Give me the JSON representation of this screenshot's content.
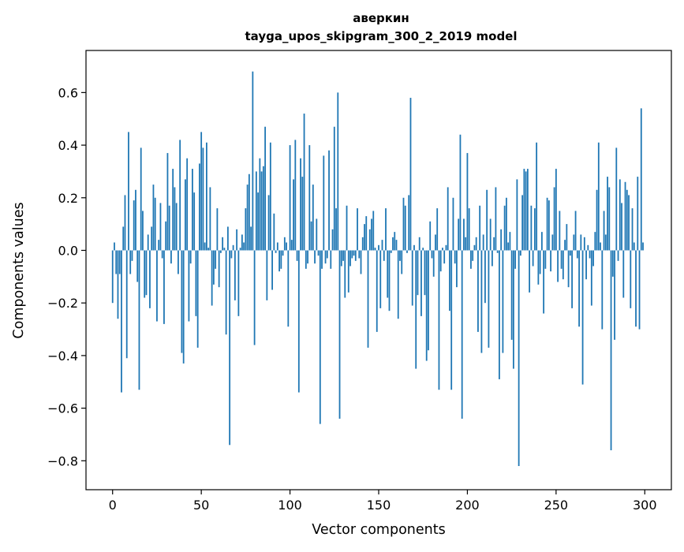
{
  "chart_data": {
    "type": "bar",
    "title_line1": "аверкин",
    "title_line2": "tayga_upos_skipgram_300_2_2019 model",
    "xlabel": "Vector components",
    "ylabel": "Components values",
    "xlim": [
      -15,
      315
    ],
    "ylim": [
      -0.91,
      0.76
    ],
    "x_ticks": [
      0,
      50,
      100,
      150,
      200,
      250,
      300
    ],
    "x_tick_labels": [
      "0",
      "50",
      "100",
      "150",
      "200",
      "250",
      "300"
    ],
    "y_ticks": [
      0.6,
      0.4,
      0.2,
      0.0,
      -0.2,
      -0.4,
      -0.6,
      -0.8
    ],
    "y_tick_labels": [
      "0.6",
      "0.4",
      "0.2",
      "0.0",
      "−0.2",
      "−0.4",
      "−0.6",
      "−0.8"
    ],
    "grid": false,
    "bar_color": "#1f77b4",
    "values": [
      -0.2,
      0.03,
      -0.09,
      -0.26,
      -0.09,
      -0.54,
      0.09,
      0.21,
      -0.41,
      0.45,
      -0.09,
      -0.04,
      0.19,
      0.23,
      -0.12,
      -0.53,
      0.39,
      0.15,
      -0.18,
      -0.17,
      0.06,
      -0.22,
      0.09,
      0.25,
      0.2,
      -0.27,
      0.04,
      0.18,
      -0.03,
      -0.28,
      0.11,
      0.37,
      0.17,
      -0.05,
      0.31,
      0.24,
      0.18,
      -0.09,
      0.42,
      -0.39,
      -0.43,
      0.27,
      0.35,
      -0.27,
      -0.05,
      0.31,
      0.22,
      -0.25,
      -0.37,
      0.33,
      0.45,
      0.39,
      0.03,
      0.41,
      0.01,
      0.24,
      -0.21,
      -0.13,
      -0.07,
      0.16,
      -0.14,
      -0.01,
      0.05,
      0.01,
      -0.32,
      0.09,
      -0.74,
      -0.03,
      0.02,
      -0.19,
      0.08,
      -0.25,
      0.01,
      0.06,
      0.03,
      0.16,
      0.25,
      0.29,
      0.09,
      0.68,
      -0.36,
      0.3,
      0.22,
      0.35,
      0.3,
      0.32,
      0.47,
      -0.19,
      0.21,
      0.41,
      -0.15,
      0.14,
      -0.01,
      0.03,
      -0.08,
      -0.07,
      -0.02,
      0.05,
      0.03,
      -0.29,
      0.4,
      0.04,
      0.27,
      0.42,
      -0.04,
      -0.54,
      0.35,
      0.28,
      0.52,
      -0.07,
      -0.05,
      0.4,
      0.11,
      0.25,
      -0.05,
      0.12,
      -0.02,
      -0.66,
      -0.07,
      0.36,
      -0.05,
      -0.03,
      0.38,
      -0.07,
      0.08,
      0.47,
      0.16,
      0.6,
      -0.64,
      -0.06,
      -0.04,
      -0.18,
      0.17,
      -0.16,
      -0.06,
      -0.03,
      -0.02,
      -0.04,
      0.16,
      -0.03,
      -0.09,
      0.05,
      0.1,
      0.13,
      -0.37,
      0.08,
      0.12,
      0.15,
      0.01,
      -0.31,
      0.02,
      -0.22,
      0.04,
      -0.04,
      0.16,
      -0.18,
      -0.23,
      -0.01,
      0.05,
      0.07,
      0.04,
      -0.26,
      -0.04,
      -0.09,
      0.2,
      0.17,
      -0.01,
      0.21,
      0.58,
      -0.21,
      0.02,
      -0.45,
      -0.17,
      0.05,
      -0.25,
      0.01,
      -0.17,
      -0.42,
      -0.38,
      0.11,
      -0.03,
      -0.1,
      0.06,
      0.16,
      -0.53,
      -0.08,
      0.01,
      -0.05,
      0.02,
      0.24,
      -0.23,
      -0.53,
      0.2,
      -0.05,
      -0.14,
      0.12,
      0.44,
      -0.64,
      0.12,
      0.05,
      0.37,
      0.16,
      -0.07,
      -0.04,
      0.02,
      0.05,
      -0.31,
      0.17,
      -0.39,
      0.06,
      -0.2,
      0.23,
      -0.37,
      0.12,
      -0.06,
      0.05,
      0.24,
      -0.01,
      -0.49,
      0.08,
      -0.39,
      0.17,
      0.2,
      0.03,
      0.07,
      -0.34,
      -0.45,
      -0.07,
      0.27,
      -0.82,
      -0.02,
      0.21,
      0.31,
      0.3,
      0.31,
      -0.16,
      0.17,
      -0.06,
      0.16,
      0.41,
      -0.13,
      -0.09,
      0.07,
      -0.24,
      -0.07,
      0.2,
      0.19,
      -0.08,
      0.06,
      0.24,
      0.31,
      -0.12,
      0.15,
      -0.07,
      -0.11,
      0.04,
      0.1,
      -0.14,
      -0.02,
      -0.22,
      0.06,
      0.15,
      -0.03,
      -0.29,
      0.06,
      -0.51,
      0.05,
      -0.11,
      0.02,
      -0.03,
      -0.21,
      -0.06,
      0.07,
      0.23,
      0.41,
      0.03,
      -0.3,
      0.15,
      0.06,
      0.28,
      0.24,
      -0.76,
      -0.1,
      -0.34,
      0.39,
      -0.04,
      0.27,
      0.18,
      -0.18,
      0.26,
      0.23,
      0.21,
      -0.22,
      0.16,
      0.03,
      -0.29,
      0.28,
      -0.3,
      0.54,
      0.03
    ]
  }
}
